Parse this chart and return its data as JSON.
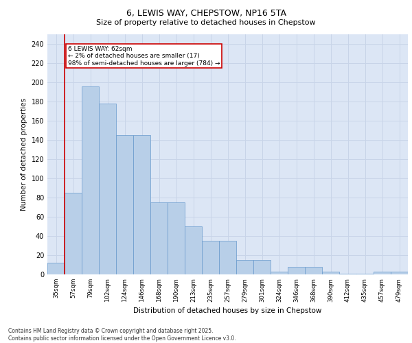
{
  "title1": "6, LEWIS WAY, CHEPSTOW, NP16 5TA",
  "title2": "Size of property relative to detached houses in Chepstow",
  "xlabel": "Distribution of detached houses by size in Chepstow",
  "ylabel": "Number of detached properties",
  "categories": [
    "35sqm",
    "57sqm",
    "79sqm",
    "102sqm",
    "124sqm",
    "146sqm",
    "168sqm",
    "190sqm",
    "213sqm",
    "235sqm",
    "257sqm",
    "279sqm",
    "301sqm",
    "324sqm",
    "346sqm",
    "368sqm",
    "390sqm",
    "412sqm",
    "435sqm",
    "457sqm",
    "479sqm"
  ],
  "bar_values": [
    12,
    85,
    196,
    178,
    145,
    145,
    75,
    75,
    50,
    35,
    35,
    15,
    15,
    3,
    8,
    8,
    3,
    1,
    1,
    3,
    3
  ],
  "bar_color": "#b8cfe8",
  "bar_edge_color": "#6699cc",
  "grid_color": "#c8d4e8",
  "background_color": "#dce6f5",
  "vline_color": "#cc0000",
  "annotation_text": "6 LEWIS WAY: 62sqm\n← 2% of detached houses are smaller (17)\n98% of semi-detached houses are larger (784) →",
  "annotation_box_color": "#ffffff",
  "annotation_box_edge": "#cc0000",
  "footer": "Contains HM Land Registry data © Crown copyright and database right 2025.\nContains public sector information licensed under the Open Government Licence v3.0.",
  "ylim": [
    0,
    250
  ],
  "yticks": [
    0,
    20,
    40,
    60,
    80,
    100,
    120,
    140,
    160,
    180,
    200,
    220,
    240
  ]
}
